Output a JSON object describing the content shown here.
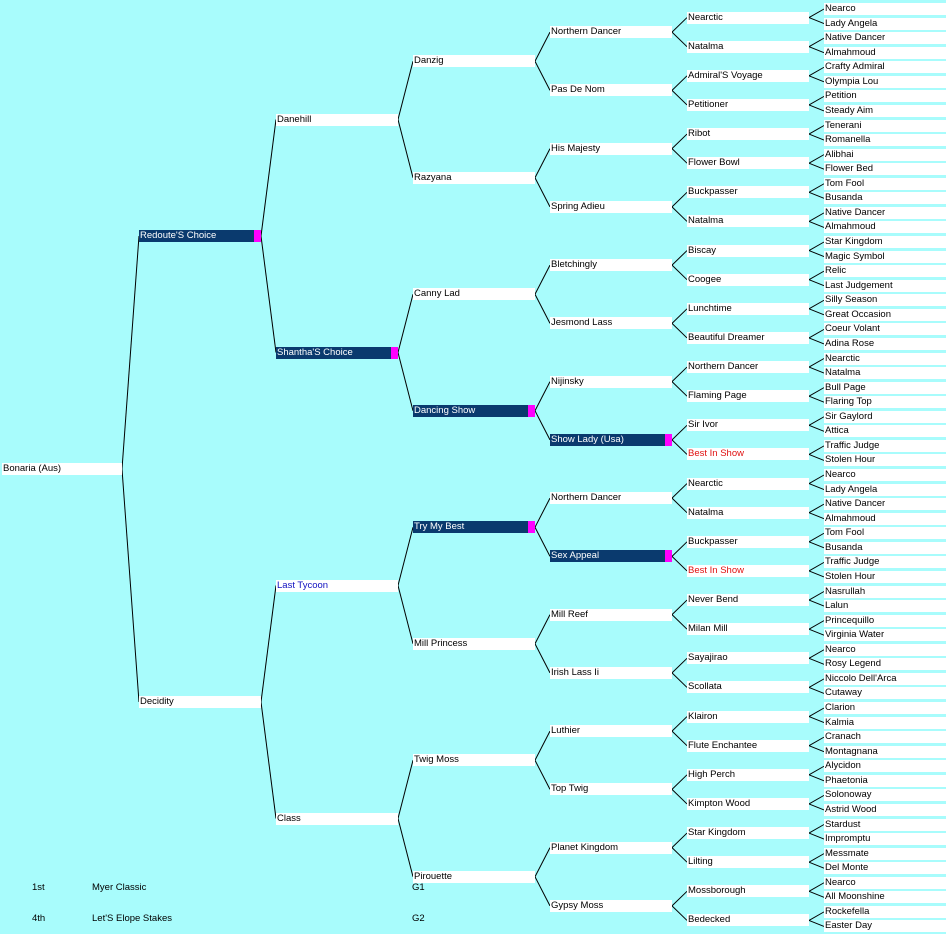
{
  "root": {
    "name": "Bonaria (Aus)"
  },
  "generations": [
    [
      {
        "name": "Redoute'S Choice",
        "style": "dark"
      },
      {
        "name": "Decidity"
      }
    ],
    [
      {
        "name": "Danehill"
      },
      {
        "name": "Shantha'S Choice",
        "style": "dark"
      },
      {
        "name": "Last Tycoon",
        "style": "blue"
      },
      {
        "name": "Class"
      }
    ],
    [
      {
        "name": "Danzig"
      },
      {
        "name": "Razyana"
      },
      {
        "name": "Canny Lad"
      },
      {
        "name": "Dancing Show",
        "style": "dark"
      },
      {
        "name": "Try My Best",
        "style": "dark"
      },
      {
        "name": "Mill Princess"
      },
      {
        "name": "Twig Moss"
      },
      {
        "name": "Pirouette"
      }
    ],
    [
      {
        "name": "Northern Dancer"
      },
      {
        "name": "Pas De Nom"
      },
      {
        "name": "His Majesty"
      },
      {
        "name": "Spring Adieu"
      },
      {
        "name": "Bletchingly"
      },
      {
        "name": "Jesmond Lass"
      },
      {
        "name": "Nijinsky"
      },
      {
        "name": "Show Lady (Usa)",
        "style": "dark"
      },
      {
        "name": "Northern Dancer"
      },
      {
        "name": "Sex Appeal",
        "style": "dark"
      },
      {
        "name": "Mill Reef"
      },
      {
        "name": "Irish Lass Ii"
      },
      {
        "name": "Luthier"
      },
      {
        "name": "Top Twig"
      },
      {
        "name": "Planet Kingdom"
      },
      {
        "name": "Gypsy Moss"
      }
    ],
    [
      {
        "name": "Nearctic"
      },
      {
        "name": "Natalma"
      },
      {
        "name": "Admiral'S Voyage"
      },
      {
        "name": "Petitioner"
      },
      {
        "name": "Ribot"
      },
      {
        "name": "Flower Bowl"
      },
      {
        "name": "Buckpasser"
      },
      {
        "name": "Natalma"
      },
      {
        "name": "Biscay"
      },
      {
        "name": "Coogee"
      },
      {
        "name": "Lunchtime"
      },
      {
        "name": "Beautiful Dreamer"
      },
      {
        "name": "Northern Dancer"
      },
      {
        "name": "Flaming Page"
      },
      {
        "name": "Sir Ivor"
      },
      {
        "name": "Best In Show",
        "style": "red"
      },
      {
        "name": "Nearctic"
      },
      {
        "name": "Natalma"
      },
      {
        "name": "Buckpasser"
      },
      {
        "name": "Best In Show",
        "style": "red"
      },
      {
        "name": "Never Bend"
      },
      {
        "name": "Milan Mill"
      },
      {
        "name": "Sayajirao"
      },
      {
        "name": "Scollata"
      },
      {
        "name": "Klairon"
      },
      {
        "name": "Flute Enchantee"
      },
      {
        "name": "High Perch"
      },
      {
        "name": "Kimpton Wood"
      },
      {
        "name": "Star Kingdom"
      },
      {
        "name": "Lilting"
      },
      {
        "name": "Mossborough"
      },
      {
        "name": "Bedecked"
      }
    ],
    [
      {
        "name": "Nearco"
      },
      {
        "name": "Lady Angela"
      },
      {
        "name": "Native Dancer"
      },
      {
        "name": "Almahmoud"
      },
      {
        "name": "Crafty Admiral"
      },
      {
        "name": "Olympia Lou"
      },
      {
        "name": "Petition"
      },
      {
        "name": "Steady Aim"
      },
      {
        "name": "Tenerani"
      },
      {
        "name": "Romanella"
      },
      {
        "name": "Alibhai"
      },
      {
        "name": "Flower Bed"
      },
      {
        "name": "Tom Fool"
      },
      {
        "name": "Busanda"
      },
      {
        "name": "Native Dancer"
      },
      {
        "name": "Almahmoud"
      },
      {
        "name": "Star Kingdom"
      },
      {
        "name": "Magic Symbol"
      },
      {
        "name": "Relic"
      },
      {
        "name": "Last Judgement"
      },
      {
        "name": "Silly Season"
      },
      {
        "name": "Great Occasion"
      },
      {
        "name": "Coeur Volant"
      },
      {
        "name": "Adina Rose"
      },
      {
        "name": "Nearctic"
      },
      {
        "name": "Natalma"
      },
      {
        "name": "Bull Page"
      },
      {
        "name": "Flaring Top"
      },
      {
        "name": "Sir Gaylord"
      },
      {
        "name": "Attica"
      },
      {
        "name": "Traffic Judge"
      },
      {
        "name": "Stolen Hour"
      },
      {
        "name": "Nearco"
      },
      {
        "name": "Lady Angela"
      },
      {
        "name": "Native Dancer"
      },
      {
        "name": "Almahmoud"
      },
      {
        "name": "Tom Fool"
      },
      {
        "name": "Busanda"
      },
      {
        "name": "Traffic Judge"
      },
      {
        "name": "Stolen Hour"
      },
      {
        "name": "Nasrullah"
      },
      {
        "name": "Lalun"
      },
      {
        "name": "Princequillo"
      },
      {
        "name": "Virginia Water"
      },
      {
        "name": "Nearco"
      },
      {
        "name": "Rosy Legend"
      },
      {
        "name": "Niccolo Dell'Arca"
      },
      {
        "name": "Cutaway"
      },
      {
        "name": "Clarion"
      },
      {
        "name": "Kalmia"
      },
      {
        "name": "Cranach"
      },
      {
        "name": "Montagnana"
      },
      {
        "name": "Alycidon"
      },
      {
        "name": "Phaetonia"
      },
      {
        "name": "Solonoway"
      },
      {
        "name": "Astrid Wood"
      },
      {
        "name": "Stardust"
      },
      {
        "name": "Impromptu"
      },
      {
        "name": "Messmate"
      },
      {
        "name": "Del Monte"
      },
      {
        "name": "Nearco"
      },
      {
        "name": "All Moonshine"
      },
      {
        "name": "Rockefella"
      },
      {
        "name": "Easter Day"
      }
    ]
  ],
  "results": [
    {
      "place": "1st",
      "race": "Myer Classic",
      "grade": "G1"
    },
    {
      "place": "4th",
      "race": "Let'S Elope Stakes",
      "grade": "G2"
    }
  ],
  "colors": {
    "background": "#a8fcfc",
    "highlight": "#0a3a6e",
    "marker": "#ff00ff",
    "line": "#000000"
  }
}
